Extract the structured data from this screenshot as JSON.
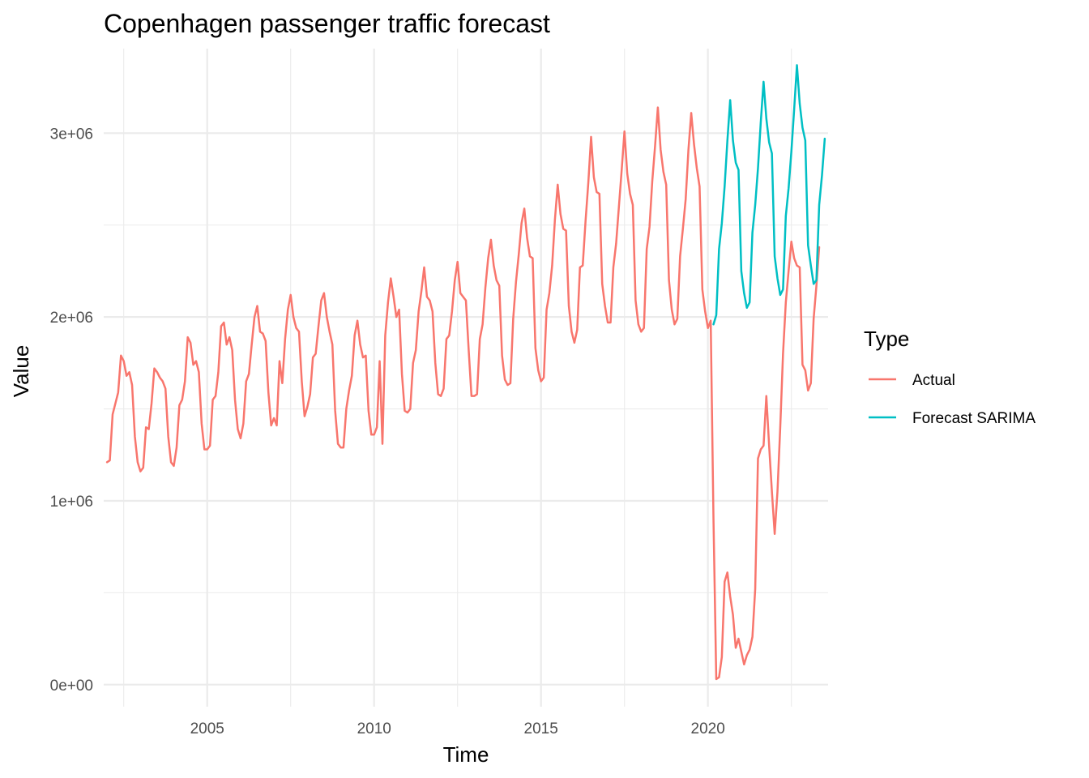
{
  "chart_data": {
    "type": "line",
    "title": "Copenhagen passenger traffic forecast",
    "xlabel": "Time",
    "ylabel": "Value",
    "xlim": [
      2001.9,
      2023.6
    ],
    "ylim": [
      -120000,
      3460000
    ],
    "x_ticks": [
      2005,
      2010,
      2015,
      2020
    ],
    "x_tick_labels": [
      "2005",
      "2010",
      "2015",
      "2020"
    ],
    "y_ticks": [
      0,
      1000000,
      2000000,
      3000000
    ],
    "y_tick_labels": [
      "0e+00",
      "1e+06",
      "2e+06",
      "3e+06"
    ],
    "grid": true,
    "legend": {
      "title": "Type",
      "position": "right",
      "entries": [
        "Actual",
        "Forecast SARIMA"
      ]
    },
    "series": [
      {
        "name": "Actual",
        "color": "#F8766D",
        "x_start": 2002.0,
        "x_step": 0.0833333,
        "values": [
          1210000,
          1220000,
          1470000,
          1530000,
          1590000,
          1790000,
          1760000,
          1680000,
          1700000,
          1630000,
          1350000,
          1210000,
          1160000,
          1180000,
          1400000,
          1390000,
          1530000,
          1720000,
          1700000,
          1670000,
          1650000,
          1610000,
          1350000,
          1210000,
          1190000,
          1290000,
          1520000,
          1550000,
          1650000,
          1890000,
          1860000,
          1740000,
          1760000,
          1700000,
          1420000,
          1280000,
          1280000,
          1300000,
          1550000,
          1570000,
          1700000,
          1950000,
          1970000,
          1850000,
          1890000,
          1820000,
          1550000,
          1390000,
          1340000,
          1420000,
          1650000,
          1690000,
          1850000,
          2000000,
          2060000,
          1920000,
          1910000,
          1870000,
          1590000,
          1410000,
          1450000,
          1410000,
          1760000,
          1640000,
          1880000,
          2040000,
          2120000,
          2000000,
          1940000,
          1920000,
          1650000,
          1460000,
          1510000,
          1580000,
          1780000,
          1800000,
          1950000,
          2090000,
          2130000,
          2000000,
          1920000,
          1850000,
          1490000,
          1310000,
          1290000,
          1290000,
          1500000,
          1600000,
          1680000,
          1900000,
          1980000,
          1850000,
          1780000,
          1790000,
          1490000,
          1360000,
          1360000,
          1400000,
          1760000,
          1310000,
          1900000,
          2080000,
          2210000,
          2110000,
          2000000,
          2040000,
          1690000,
          1490000,
          1480000,
          1500000,
          1750000,
          1820000,
          2030000,
          2140000,
          2270000,
          2110000,
          2090000,
          2030000,
          1750000,
          1580000,
          1570000,
          1610000,
          1880000,
          1900000,
          2030000,
          2200000,
          2300000,
          2130000,
          2110000,
          2090000,
          1820000,
          1570000,
          1570000,
          1580000,
          1880000,
          1960000,
          2160000,
          2320000,
          2420000,
          2280000,
          2200000,
          2170000,
          1790000,
          1660000,
          1630000,
          1640000,
          1990000,
          2190000,
          2340000,
          2510000,
          2590000,
          2430000,
          2330000,
          2320000,
          1830000,
          1710000,
          1650000,
          1670000,
          2040000,
          2130000,
          2280000,
          2530000,
          2720000,
          2560000,
          2480000,
          2470000,
          2060000,
          1920000,
          1860000,
          1930000,
          2270000,
          2280000,
          2520000,
          2730000,
          2980000,
          2760000,
          2680000,
          2670000,
          2180000,
          2060000,
          1970000,
          1970000,
          2270000,
          2400000,
          2600000,
          2800000,
          3010000,
          2780000,
          2670000,
          2610000,
          2090000,
          1960000,
          1920000,
          1940000,
          2370000,
          2490000,
          2740000,
          2930000,
          3140000,
          2910000,
          2790000,
          2720000,
          2200000,
          2040000,
          1960000,
          1990000,
          2330000,
          2480000,
          2640000,
          2910000,
          3110000,
          2940000,
          2810000,
          2710000,
          2150000,
          2030000,
          1940000,
          1980000,
          900000,
          30000,
          40000,
          150000,
          560000,
          610000,
          480000,
          380000,
          200000,
          250000,
          180000,
          110000,
          160000,
          190000,
          260000,
          520000,
          1230000,
          1280000,
          1300000,
          1570000,
          1300000,
          1050000,
          820000,
          1050000,
          1400000,
          1800000,
          2080000,
          2250000,
          2410000,
          2320000,
          2280000,
          2270000,
          1740000,
          1710000,
          1600000,
          1640000,
          1990000,
          2170000,
          2380000
        ]
      },
      {
        "name": "Forecast SARIMA",
        "color": "#00BFC4",
        "x_start": 2020.1666667,
        "x_step": 0.0833333,
        "values": [
          1960000,
          2010000,
          2370000,
          2510000,
          2710000,
          2960000,
          3180000,
          2960000,
          2840000,
          2800000,
          2250000,
          2130000,
          2050000,
          2080000,
          2460000,
          2610000,
          2810000,
          3060000,
          3280000,
          3080000,
          2950000,
          2890000,
          2330000,
          2210000,
          2120000,
          2150000,
          2550000,
          2700000,
          2900000,
          3130000,
          3370000,
          3160000,
          3030000,
          2960000,
          2390000,
          2280000,
          2180000,
          2200000,
          2610000,
          2770000,
          2970000
        ]
      }
    ]
  }
}
